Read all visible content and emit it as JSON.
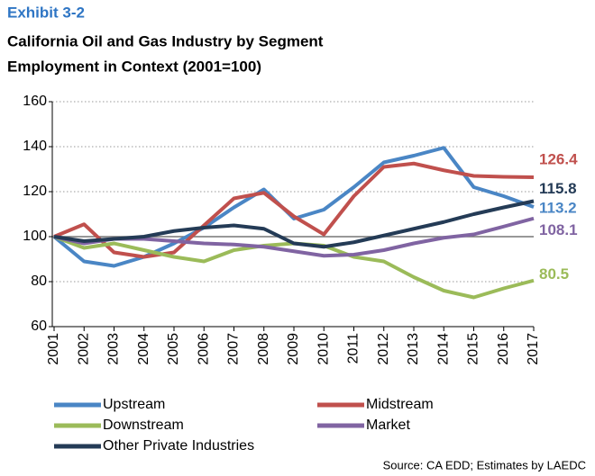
{
  "exhibit": "Exhibit 3-2",
  "chart_data": {
    "type": "line",
    "title": "California Oil and Gas Industry by Segment",
    "subtitle": "Employment in Context (2001=100)",
    "categories": [
      "2001",
      "2002",
      "2003",
      "2004",
      "2005",
      "2006",
      "2007",
      "2008",
      "2009",
      "2010",
      "2011",
      "2012",
      "2013",
      "2014",
      "2015",
      "2016",
      "2017"
    ],
    "series": [
      {
        "name": "Upstream",
        "color": "#4a86c5",
        "values": [
          100,
          89,
          87,
          91,
          97,
          104,
          113,
          121,
          108,
          112,
          122,
          133,
          136,
          139.5,
          122,
          118,
          113.2
        ]
      },
      {
        "name": "Midstream",
        "color": "#c0504d",
        "values": [
          100,
          105.5,
          93,
          91,
          93,
          105,
          117,
          119.5,
          109,
          101,
          118,
          131,
          132.5,
          129.5,
          127,
          126.6,
          126.4
        ]
      },
      {
        "name": "Downstream",
        "color": "#9bbb59",
        "values": [
          100,
          95,
          97,
          94,
          91,
          89,
          94,
          96,
          97,
          96,
          91,
          89,
          82,
          76,
          73,
          77,
          80.5
        ]
      },
      {
        "name": "Market",
        "color": "#8064a2",
        "values": [
          100,
          97,
          99,
          99,
          98,
          97,
          96.5,
          95.5,
          93.5,
          91.5,
          92,
          94,
          97,
          99.5,
          101,
          104.5,
          108.1
        ]
      },
      {
        "name": "Other Private Industries",
        "color": "#243b56",
        "values": [
          100,
          98,
          99,
          100,
          102.5,
          104,
          105,
          103.5,
          97,
          95.5,
          97.5,
          100.5,
          103.5,
          106.5,
          110,
          113,
          115.8
        ]
      }
    ],
    "ylim": [
      60,
      160
    ],
    "yticks": [
      60,
      80,
      100,
      120,
      140,
      160
    ],
    "grid": true,
    "reference_line": 100,
    "source": "Source: CA EDD; Estimates by LAEDC"
  }
}
